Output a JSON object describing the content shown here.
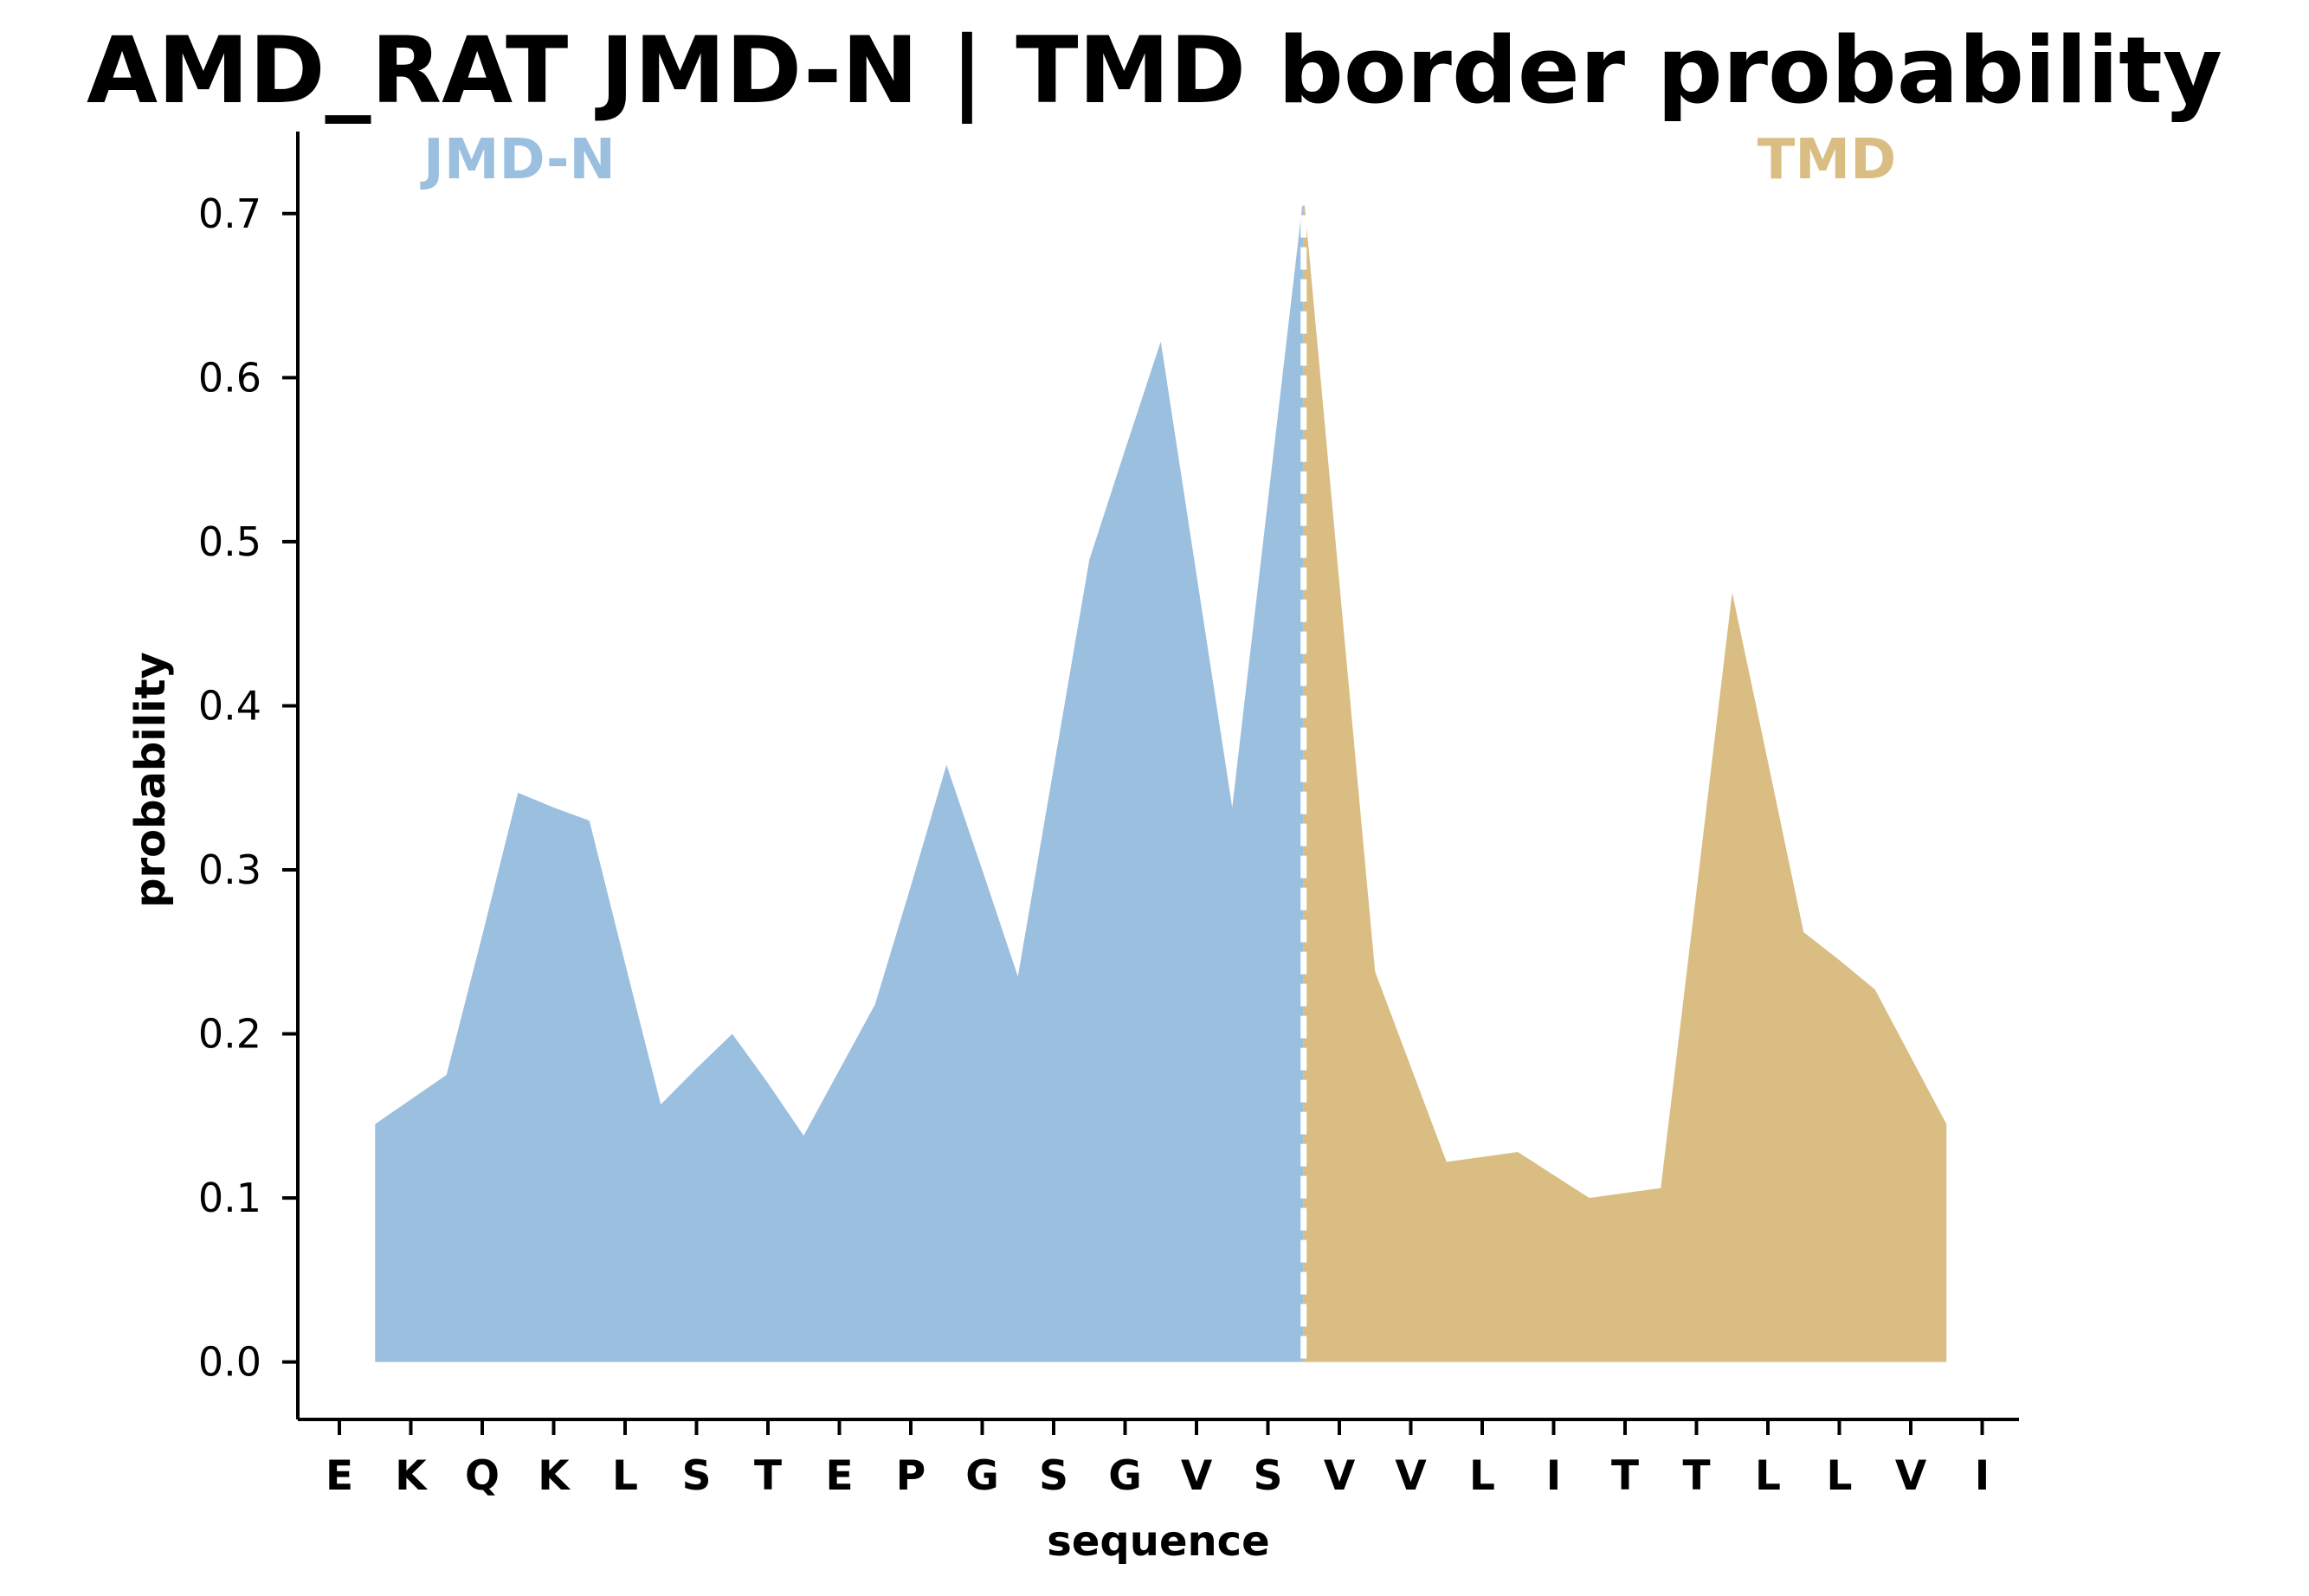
{
  "chart_data": {
    "type": "area",
    "title": "AMD_RAT JMD-N | TMD border probability",
    "xlabel": "sequence",
    "ylabel": "probability",
    "ylim": [
      -0.035,
      0.75
    ],
    "yticks": [
      "0.0",
      "0.1",
      "0.2",
      "0.3",
      "0.4",
      "0.5",
      "0.6",
      "0.7"
    ],
    "categories": [
      "E",
      "K",
      "Q",
      "K",
      "L",
      "S",
      "T",
      "E",
      "P",
      "G",
      "S",
      "G",
      "V",
      "S",
      "V",
      "V",
      "L",
      "I",
      "T",
      "T",
      "L",
      "L",
      "V",
      "I"
    ],
    "border_position": 13.5,
    "regions": [
      {
        "name": "JMD-N",
        "color": "#9bbfdf",
        "label_position": "top-left"
      },
      {
        "name": "TMD",
        "color": "#d9bd82",
        "label_position": "top-right"
      }
    ],
    "series": [
      {
        "region": "JMD-N",
        "x": [
          0.5,
          1.0,
          1.5,
          2.0,
          2.5,
          3.0,
          3.5,
          4.0,
          4.5,
          5.0,
          5.5,
          6.0,
          6.5,
          7.0,
          7.5,
          8.0,
          8.5,
          9.0,
          9.5,
          10.0,
          10.5,
          11.0,
          11.5,
          12.0,
          12.5,
          13.0,
          13.5
        ],
        "values": [
          0.145,
          0.16,
          0.175,
          0.26,
          0.347,
          0.338,
          0.33,
          0.243,
          0.157,
          0.179,
          0.2,
          0.17,
          0.138,
          0.178,
          0.218,
          0.29,
          0.364,
          0.3,
          0.235,
          0.362,
          0.489,
          0.556,
          0.622,
          0.48,
          0.338,
          0.525,
          0.712
        ]
      },
      {
        "region": "TMD",
        "x": [
          13.5,
          14.0,
          14.5,
          15.0,
          15.5,
          16.0,
          16.5,
          17.0,
          17.5,
          18.0,
          18.5,
          19.0,
          19.5,
          20.0,
          20.5,
          21.0,
          21.5,
          22.0,
          22.5
        ],
        "values": [
          0.712,
          0.475,
          0.238,
          0.18,
          0.122,
          0.125,
          0.128,
          0.114,
          0.1,
          0.103,
          0.106,
          0.287,
          0.469,
          0.366,
          0.262,
          0.245,
          0.227,
          0.186,
          0.145
        ]
      }
    ],
    "colors": {
      "jmd": "#9bbfdf",
      "tmd": "#d9bd82",
      "border_line": "#ffffff",
      "axis": "#000000"
    }
  }
}
